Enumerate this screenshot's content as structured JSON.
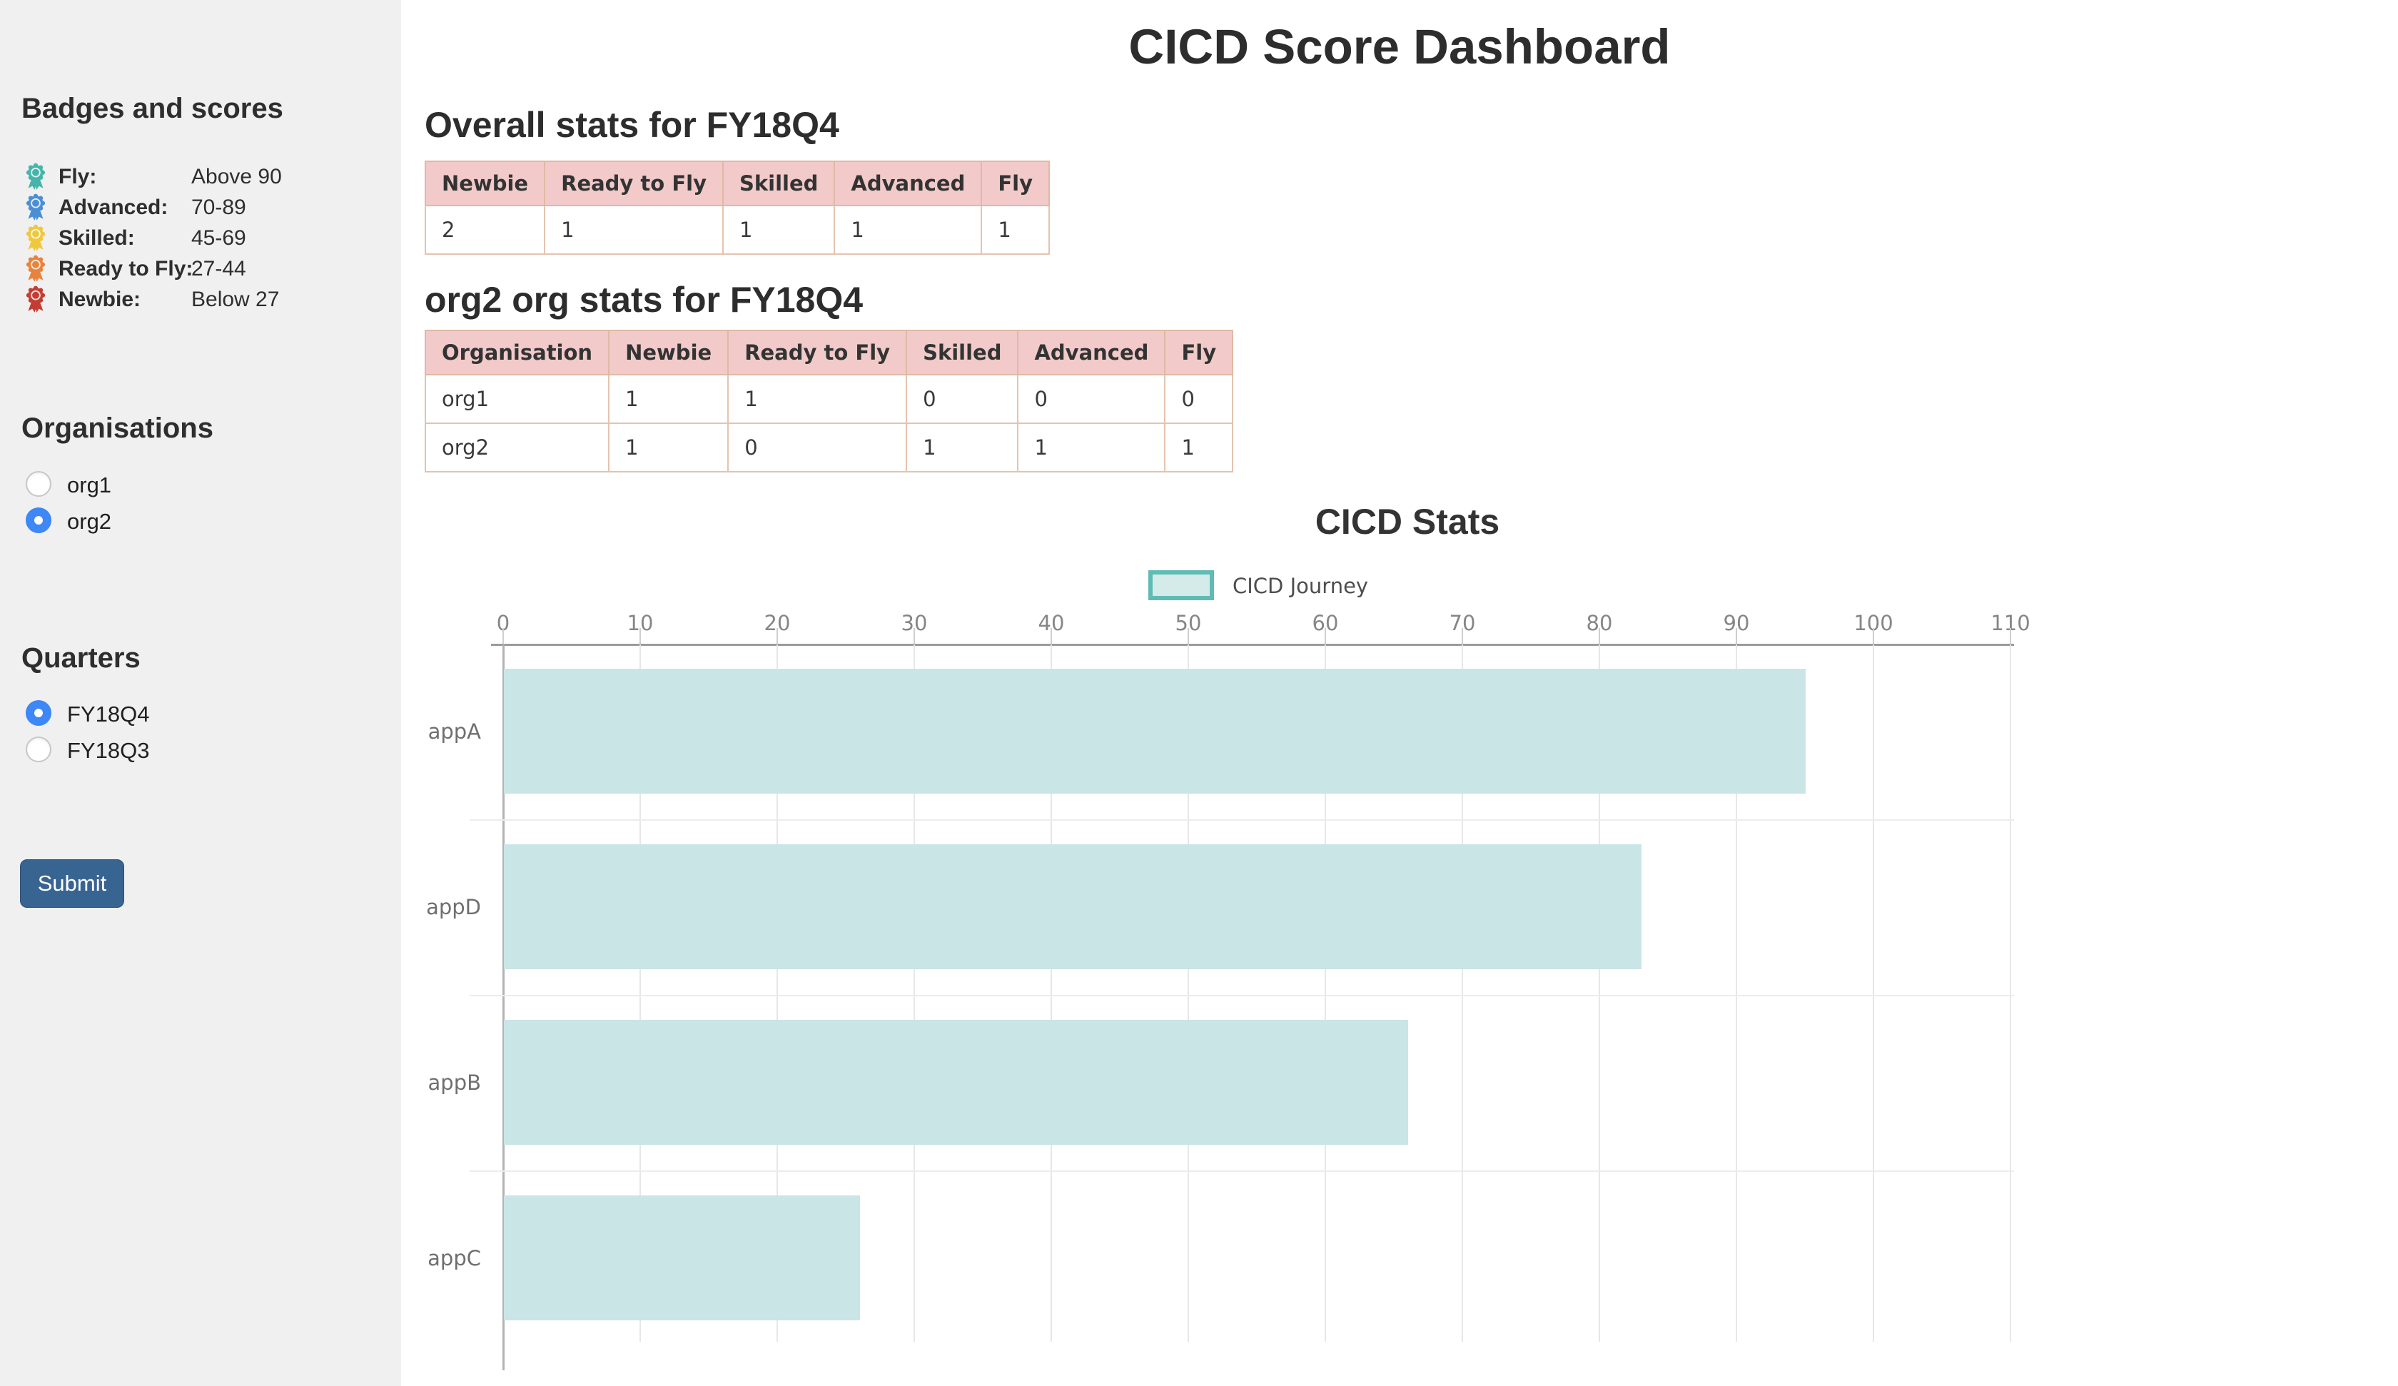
{
  "app": {
    "title": "CICD Score Dashboard"
  },
  "sidebar": {
    "badges_heading": "Badges and scores",
    "badges": [
      {
        "name": "Fly:",
        "range": "Above 90",
        "color": "#45b5aa",
        "icon": "rosette-badge-icon"
      },
      {
        "name": "Advanced:",
        "range": "70-89",
        "color": "#4a8fd3",
        "icon": "rosette-badge-icon"
      },
      {
        "name": "Skilled:",
        "range": "45-69",
        "color": "#f0c83d",
        "icon": "rosette-badge-icon"
      },
      {
        "name": "Ready to Fly:",
        "range": "27-44",
        "color": "#e8823c",
        "icon": "rosette-badge-icon"
      },
      {
        "name": "Newbie:",
        "range": "Below 27",
        "color": "#c43d32",
        "icon": "rosette-badge-icon"
      }
    ],
    "organisations_heading": "Organisations",
    "organisations": [
      {
        "label": "org1",
        "selected": false
      },
      {
        "label": "org2",
        "selected": true
      }
    ],
    "quarters_heading": "Quarters",
    "quarters": [
      {
        "label": "FY18Q4",
        "selected": true
      },
      {
        "label": "FY18Q3",
        "selected": false
      }
    ],
    "submit_label": "Submit"
  },
  "overall": {
    "heading": "Overall stats for FY18Q4",
    "columns": [
      "Newbie",
      "Ready to Fly",
      "Skilled",
      "Advanced",
      "Fly"
    ],
    "rows": [
      [
        "2",
        "1",
        "1",
        "1",
        "1"
      ]
    ]
  },
  "org_stats": {
    "heading": "org2 org stats for FY18Q4",
    "columns": [
      "Organisation",
      "Newbie",
      "Ready to Fly",
      "Skilled",
      "Advanced",
      "Fly"
    ],
    "rows": [
      [
        "org1",
        "1",
        "1",
        "0",
        "0",
        "0"
      ],
      [
        "org2",
        "1",
        "0",
        "1",
        "1",
        "1"
      ]
    ]
  },
  "chart_data": {
    "type": "bar",
    "orientation": "horizontal",
    "title": "CICD Stats",
    "legend": [
      {
        "label": "CICD Journey",
        "fill": "#d5ebe9",
        "stroke": "#5fbcb5"
      }
    ],
    "legend_position": "top",
    "categories": [
      "appA",
      "appD",
      "appB",
      "appC"
    ],
    "values": [
      95,
      83,
      66,
      26
    ],
    "bar_color": "#c9e5e6",
    "xlim": [
      0,
      110
    ],
    "xticks": [
      0,
      10,
      20,
      30,
      40,
      50,
      60,
      70,
      80,
      90,
      100,
      110
    ],
    "grid": true
  }
}
